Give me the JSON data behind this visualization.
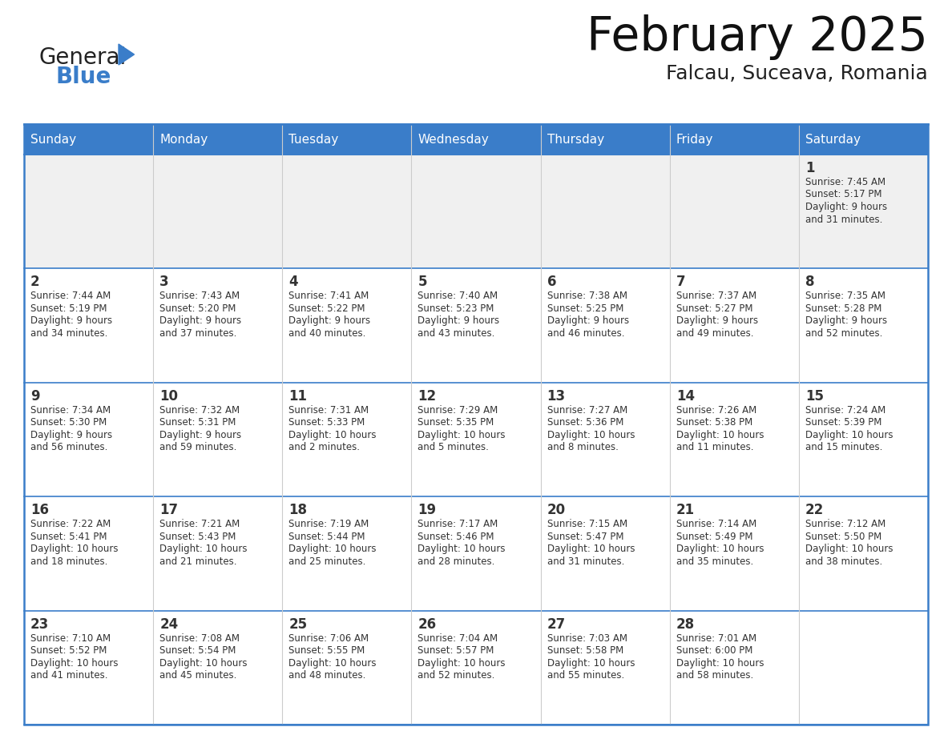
{
  "title": "February 2025",
  "subtitle": "Falcau, Suceava, Romania",
  "header_bg": "#3A7DC9",
  "header_text": "#FFFFFF",
  "cell_bg": "#FFFFFF",
  "cell_bg_first": "#F0F0F0",
  "cell_border_h": "#3A7DC9",
  "cell_border_v": "#CCCCCC",
  "day_number_color": "#333333",
  "text_color": "#333333",
  "days_of_week": [
    "Sunday",
    "Monday",
    "Tuesday",
    "Wednesday",
    "Thursday",
    "Friday",
    "Saturday"
  ],
  "weeks": [
    [
      {
        "day": null,
        "info": ""
      },
      {
        "day": null,
        "info": ""
      },
      {
        "day": null,
        "info": ""
      },
      {
        "day": null,
        "info": ""
      },
      {
        "day": null,
        "info": ""
      },
      {
        "day": null,
        "info": ""
      },
      {
        "day": 1,
        "info": "Sunrise: 7:45 AM\nSunset: 5:17 PM\nDaylight: 9 hours\nand 31 minutes."
      }
    ],
    [
      {
        "day": 2,
        "info": "Sunrise: 7:44 AM\nSunset: 5:19 PM\nDaylight: 9 hours\nand 34 minutes."
      },
      {
        "day": 3,
        "info": "Sunrise: 7:43 AM\nSunset: 5:20 PM\nDaylight: 9 hours\nand 37 minutes."
      },
      {
        "day": 4,
        "info": "Sunrise: 7:41 AM\nSunset: 5:22 PM\nDaylight: 9 hours\nand 40 minutes."
      },
      {
        "day": 5,
        "info": "Sunrise: 7:40 AM\nSunset: 5:23 PM\nDaylight: 9 hours\nand 43 minutes."
      },
      {
        "day": 6,
        "info": "Sunrise: 7:38 AM\nSunset: 5:25 PM\nDaylight: 9 hours\nand 46 minutes."
      },
      {
        "day": 7,
        "info": "Sunrise: 7:37 AM\nSunset: 5:27 PM\nDaylight: 9 hours\nand 49 minutes."
      },
      {
        "day": 8,
        "info": "Sunrise: 7:35 AM\nSunset: 5:28 PM\nDaylight: 9 hours\nand 52 minutes."
      }
    ],
    [
      {
        "day": 9,
        "info": "Sunrise: 7:34 AM\nSunset: 5:30 PM\nDaylight: 9 hours\nand 56 minutes."
      },
      {
        "day": 10,
        "info": "Sunrise: 7:32 AM\nSunset: 5:31 PM\nDaylight: 9 hours\nand 59 minutes."
      },
      {
        "day": 11,
        "info": "Sunrise: 7:31 AM\nSunset: 5:33 PM\nDaylight: 10 hours\nand 2 minutes."
      },
      {
        "day": 12,
        "info": "Sunrise: 7:29 AM\nSunset: 5:35 PM\nDaylight: 10 hours\nand 5 minutes."
      },
      {
        "day": 13,
        "info": "Sunrise: 7:27 AM\nSunset: 5:36 PM\nDaylight: 10 hours\nand 8 minutes."
      },
      {
        "day": 14,
        "info": "Sunrise: 7:26 AM\nSunset: 5:38 PM\nDaylight: 10 hours\nand 11 minutes."
      },
      {
        "day": 15,
        "info": "Sunrise: 7:24 AM\nSunset: 5:39 PM\nDaylight: 10 hours\nand 15 minutes."
      }
    ],
    [
      {
        "day": 16,
        "info": "Sunrise: 7:22 AM\nSunset: 5:41 PM\nDaylight: 10 hours\nand 18 minutes."
      },
      {
        "day": 17,
        "info": "Sunrise: 7:21 AM\nSunset: 5:43 PM\nDaylight: 10 hours\nand 21 minutes."
      },
      {
        "day": 18,
        "info": "Sunrise: 7:19 AM\nSunset: 5:44 PM\nDaylight: 10 hours\nand 25 minutes."
      },
      {
        "day": 19,
        "info": "Sunrise: 7:17 AM\nSunset: 5:46 PM\nDaylight: 10 hours\nand 28 minutes."
      },
      {
        "day": 20,
        "info": "Sunrise: 7:15 AM\nSunset: 5:47 PM\nDaylight: 10 hours\nand 31 minutes."
      },
      {
        "day": 21,
        "info": "Sunrise: 7:14 AM\nSunset: 5:49 PM\nDaylight: 10 hours\nand 35 minutes."
      },
      {
        "day": 22,
        "info": "Sunrise: 7:12 AM\nSunset: 5:50 PM\nDaylight: 10 hours\nand 38 minutes."
      }
    ],
    [
      {
        "day": 23,
        "info": "Sunrise: 7:10 AM\nSunset: 5:52 PM\nDaylight: 10 hours\nand 41 minutes."
      },
      {
        "day": 24,
        "info": "Sunrise: 7:08 AM\nSunset: 5:54 PM\nDaylight: 10 hours\nand 45 minutes."
      },
      {
        "day": 25,
        "info": "Sunrise: 7:06 AM\nSunset: 5:55 PM\nDaylight: 10 hours\nand 48 minutes."
      },
      {
        "day": 26,
        "info": "Sunrise: 7:04 AM\nSunset: 5:57 PM\nDaylight: 10 hours\nand 52 minutes."
      },
      {
        "day": 27,
        "info": "Sunrise: 7:03 AM\nSunset: 5:58 PM\nDaylight: 10 hours\nand 55 minutes."
      },
      {
        "day": 28,
        "info": "Sunrise: 7:01 AM\nSunset: 6:00 PM\nDaylight: 10 hours\nand 58 minutes."
      },
      {
        "day": null,
        "info": ""
      }
    ]
  ],
  "fig_width": 11.88,
  "fig_height": 9.18,
  "logo_general_color": "#222222",
  "logo_blue_color": "#3A7DC9",
  "logo_triangle_color": "#3A7DC9"
}
